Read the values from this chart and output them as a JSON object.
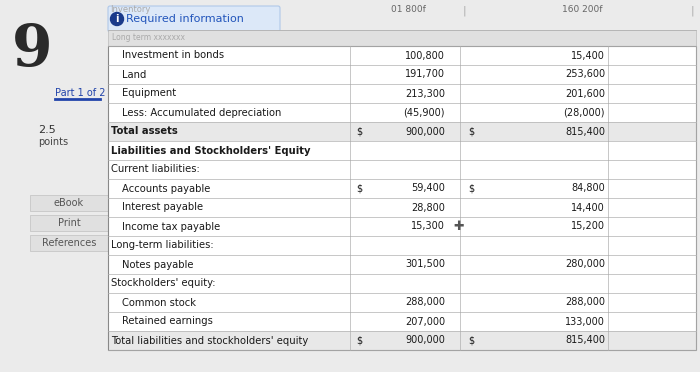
{
  "title_number": "9",
  "header_label": "Required information",
  "col_header1": "01 800f",
  "col_header2": "160 200f",
  "inventory_label": "Inventory",
  "table_rows": [
    {
      "label": "Investment in bonds",
      "indent": true,
      "val1": "100,800",
      "val2": "15,400",
      "bold": false,
      "dollar1": false,
      "dollar2": false,
      "section_break": false
    },
    {
      "label": "Land",
      "indent": true,
      "val1": "191,700",
      "val2": "253,600",
      "bold": false,
      "dollar1": false,
      "dollar2": false,
      "section_break": false
    },
    {
      "label": "Equipment",
      "indent": true,
      "val1": "213,300",
      "val2": "201,600",
      "bold": false,
      "dollar1": false,
      "dollar2": false,
      "section_break": false
    },
    {
      "label": "Less: Accumulated depreciation",
      "indent": true,
      "val1": "(45,900)",
      "val2": "(28,000)",
      "bold": false,
      "dollar1": false,
      "dollar2": false,
      "section_break": false
    },
    {
      "label": "Total assets",
      "indent": false,
      "val1": "900,000",
      "val2": "815,400",
      "bold": true,
      "dollar1": true,
      "dollar2": true,
      "section_break": false
    },
    {
      "label": "Liabilities and Stockholders' Equity",
      "indent": false,
      "val1": "",
      "val2": "",
      "bold": true,
      "dollar1": false,
      "dollar2": false,
      "section_break": false
    },
    {
      "label": "Current liabilities:",
      "indent": false,
      "val1": "",
      "val2": "",
      "bold": false,
      "dollar1": false,
      "dollar2": false,
      "section_break": false
    },
    {
      "label": "Accounts payable",
      "indent": true,
      "val1": "59,400",
      "val2": "84,800",
      "bold": false,
      "dollar1": true,
      "dollar2": true,
      "section_break": false
    },
    {
      "label": "Interest payable",
      "indent": true,
      "val1": "28,800",
      "val2": "14,400",
      "bold": false,
      "dollar1": false,
      "dollar2": false,
      "section_break": false
    },
    {
      "label": "Income tax payable",
      "indent": true,
      "val1": "15,300",
      "val2": "15,200",
      "bold": false,
      "dollar1": false,
      "dollar2": false,
      "section_break": false
    },
    {
      "label": "Long-term liabilities:",
      "indent": false,
      "val1": "",
      "val2": "",
      "bold": false,
      "dollar1": false,
      "dollar2": false,
      "section_break": false
    },
    {
      "label": "Notes payable",
      "indent": true,
      "val1": "301,500",
      "val2": "280,000",
      "bold": false,
      "dollar1": false,
      "dollar2": false,
      "section_break": false
    },
    {
      "label": "Stockholders' equity:",
      "indent": false,
      "val1": "",
      "val2": "",
      "bold": false,
      "dollar1": false,
      "dollar2": false,
      "section_break": false
    },
    {
      "label": "Common stock",
      "indent": true,
      "val1": "288,000",
      "val2": "288,000",
      "bold": false,
      "dollar1": false,
      "dollar2": false,
      "section_break": false
    },
    {
      "label": "Retained earnings",
      "indent": true,
      "val1": "207,000",
      "val2": "133,000",
      "bold": false,
      "dollar1": false,
      "dollar2": false,
      "section_break": false
    },
    {
      "label": "Total liabilities and stockholders' equity",
      "indent": false,
      "val1": "900,000",
      "val2": "815,400",
      "bold": false,
      "dollar1": true,
      "dollar2": true,
      "section_break": false
    }
  ],
  "bg_color": "#ebebeb",
  "table_bg": "#ffffff",
  "grid_color": "#b0b0b0",
  "text_color": "#1a1a1a",
  "blue_color": "#2255bb",
  "required_bg": "#dce8f8",
  "side_box_color": "#e8e8e8",
  "total_row_bg": "#e8e8e8"
}
